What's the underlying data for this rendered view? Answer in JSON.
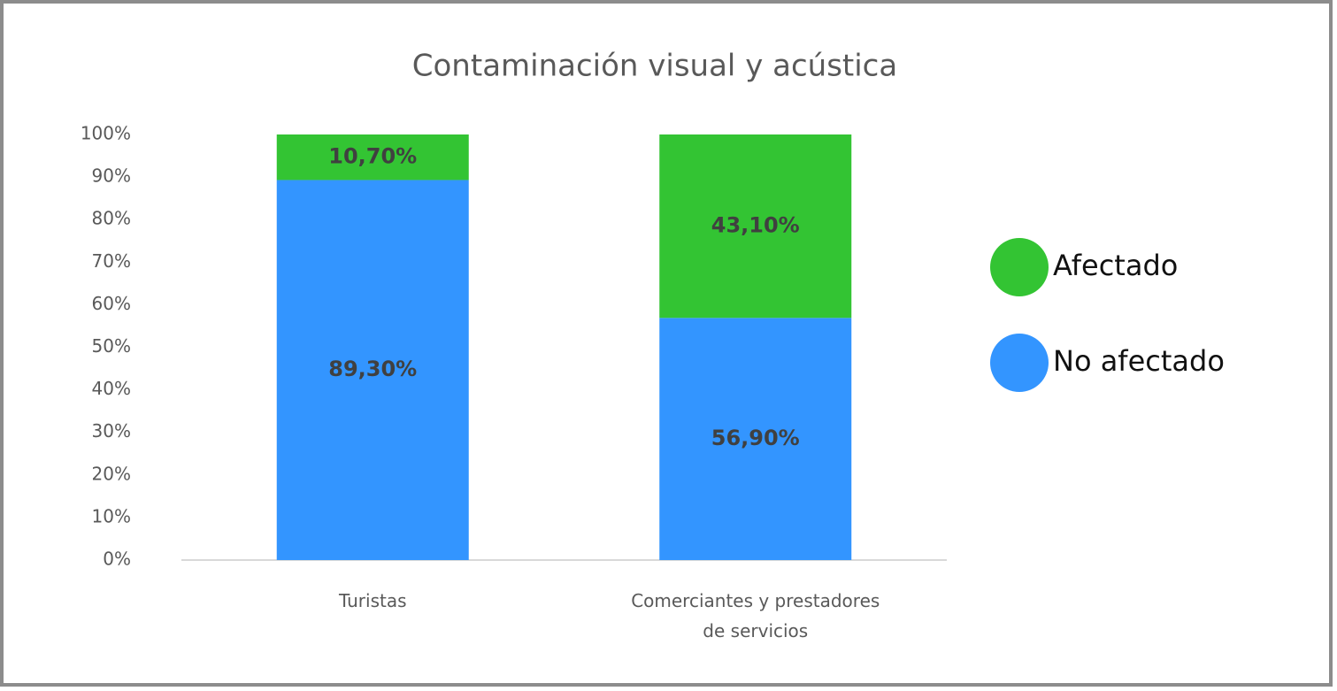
{
  "chart_data": {
    "type": "stacked_bar",
    "title": "Contaminación visual y acústica",
    "categories": [
      "Turistas",
      "Comerciantes y prestadores de servicios"
    ],
    "series": [
      {
        "name": "No afectado",
        "color": "#3395ff",
        "values": [
          89.3,
          56.9
        ],
        "value_labels": [
          "89,30%",
          "56,90%"
        ]
      },
      {
        "name": "Afectado",
        "color": "#33c433",
        "values": [
          10.7,
          43.1
        ],
        "value_labels": [
          "10,70%",
          "43,10%"
        ]
      }
    ],
    "ylim": [
      0,
      100
    ],
    "yticks": [
      {
        "value": 0,
        "label": "0%"
      },
      {
        "value": 10,
        "label": "10%"
      },
      {
        "value": 20,
        "label": "20%"
      },
      {
        "value": 30,
        "label": "30%"
      },
      {
        "value": 40,
        "label": "40%"
      },
      {
        "value": 50,
        "label": "50%"
      },
      {
        "value": 60,
        "label": "60%"
      },
      {
        "value": 70,
        "label": "70%"
      },
      {
        "value": 80,
        "label": "80%"
      },
      {
        "value": 90,
        "label": "90%"
      },
      {
        "value": 100,
        "label": "100%"
      }
    ],
    "grid": false,
    "legend": "right"
  }
}
